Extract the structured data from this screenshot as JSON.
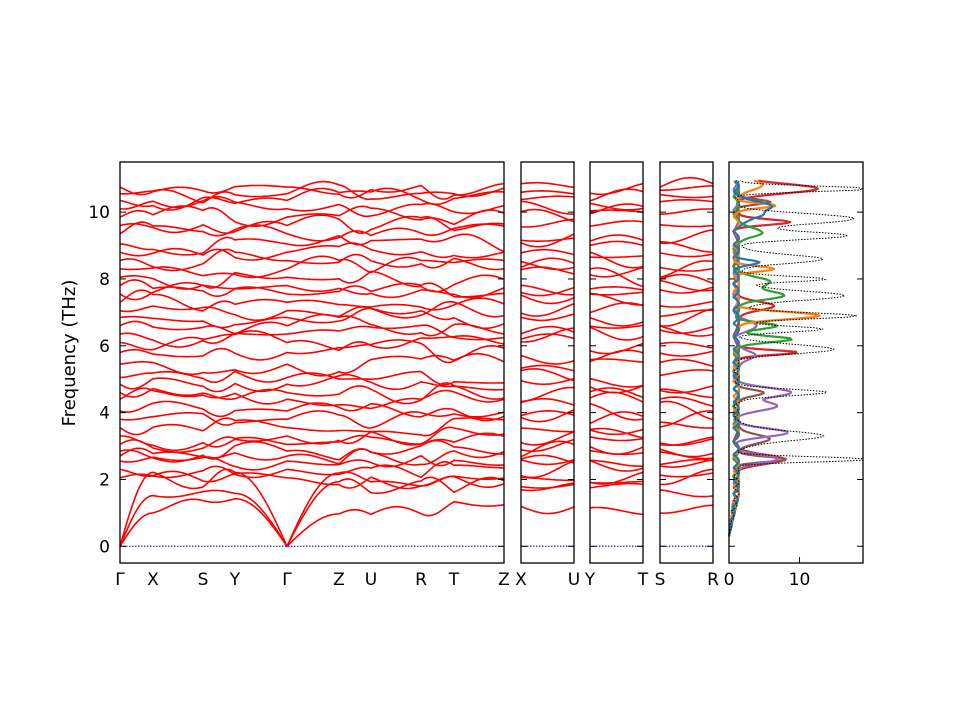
{
  "chart_data": {
    "type": "line",
    "ylabel": "Frequency (THz)",
    "ylim": [
      -0.5,
      11.5
    ],
    "yticks": [
      0,
      2,
      4,
      6,
      8,
      10
    ],
    "panels": [
      {
        "id": "p1",
        "segments": [
          {
            "from": "Γ",
            "to": "X"
          },
          {
            "from": "X",
            "to": "S"
          },
          {
            "from": "S",
            "to": "Y"
          },
          {
            "from": "Y",
            "to": "Γ"
          },
          {
            "from": "Γ",
            "to": "Z"
          },
          {
            "from": "Z",
            "to": "U"
          },
          {
            "from": "U",
            "to": "R"
          },
          {
            "from": "R",
            "to": "T"
          },
          {
            "from": "T",
            "to": "Z"
          }
        ],
        "labels": [
          "Γ",
          "X",
          "S",
          "Y",
          "Γ",
          "Z",
          "U",
          "R",
          "T",
          "Z"
        ]
      },
      {
        "id": "p2",
        "labels": [
          "X",
          "U"
        ]
      },
      {
        "id": "p3",
        "labels": [
          "Y",
          "T"
        ]
      },
      {
        "id": "p4",
        "labels": [
          "S",
          "R"
        ]
      }
    ],
    "band_frequencies_at_gamma": [
      0,
      0,
      0,
      2.05,
      2.3,
      2.55,
      2.7,
      2.85,
      3.05,
      3.3,
      3.55,
      3.8,
      4.05,
      4.4,
      4.6,
      4.85,
      5.05,
      5.45,
      5.8,
      6.1,
      6.35,
      6.6,
      6.85,
      7.05,
      7.3,
      7.55,
      7.8,
      8.05,
      8.3,
      8.55,
      8.8,
      9.05,
      9.35,
      9.6,
      9.85,
      10.1,
      10.35,
      10.55,
      10.75
    ],
    "dos": {
      "xlim": [
        0,
        19
      ],
      "xticks": [
        0,
        10
      ],
      "series": [
        {
          "color": "#d62728",
          "peaks": [
            [
              2.6,
              6.5
            ],
            [
              5.8,
              8.5
            ],
            [
              7.2,
              5.5
            ],
            [
              9.7,
              7.5
            ],
            [
              10.7,
              11.5
            ]
          ]
        },
        {
          "color": "#8c564b",
          "peaks": [
            [
              2.6,
              7.0
            ],
            [
              3.2,
              5.0
            ],
            [
              4.6,
              4.0
            ],
            [
              10.3,
              5.0
            ]
          ]
        },
        {
          "color": "#9467bd",
          "peaks": [
            [
              2.6,
              6.0
            ],
            [
              3.4,
              7.0
            ],
            [
              4.2,
              5.5
            ],
            [
              4.6,
              7.5
            ],
            [
              5.7,
              3.0
            ],
            [
              6.6,
              2.5
            ]
          ]
        },
        {
          "color": "#2ca02c",
          "peaks": [
            [
              6.2,
              8.0
            ],
            [
              6.6,
              5.5
            ],
            [
              7.5,
              6.5
            ],
            [
              7.9,
              5.0
            ],
            [
              9.4,
              4.0
            ]
          ]
        },
        {
          "color": "#ff7f0e",
          "peaks": [
            [
              6.9,
              11.5
            ],
            [
              8.3,
              5.0
            ],
            [
              10.2,
              5.5
            ],
            [
              10.8,
              4.0
            ]
          ]
        },
        {
          "color": "#1f77b4",
          "peaks": [
            [
              8.5,
              3.0
            ],
            [
              9.9,
              3.5
            ],
            [
              10.2,
              5.0
            ]
          ]
        },
        {
          "color": "#000000",
          "peaks": [
            [
              2.6,
              19.0
            ],
            [
              3.3,
              12.0
            ],
            [
              4.6,
              13.0
            ],
            [
              5.9,
              14.0
            ],
            [
              6.5,
              12.0
            ],
            [
              6.9,
              17.0
            ],
            [
              7.5,
              15.0
            ],
            [
              8.0,
              13.0
            ],
            [
              8.6,
              12.0
            ],
            [
              9.3,
              15.5
            ],
            [
              9.8,
              17.0
            ],
            [
              10.7,
              19.0
            ]
          ]
        }
      ]
    }
  }
}
